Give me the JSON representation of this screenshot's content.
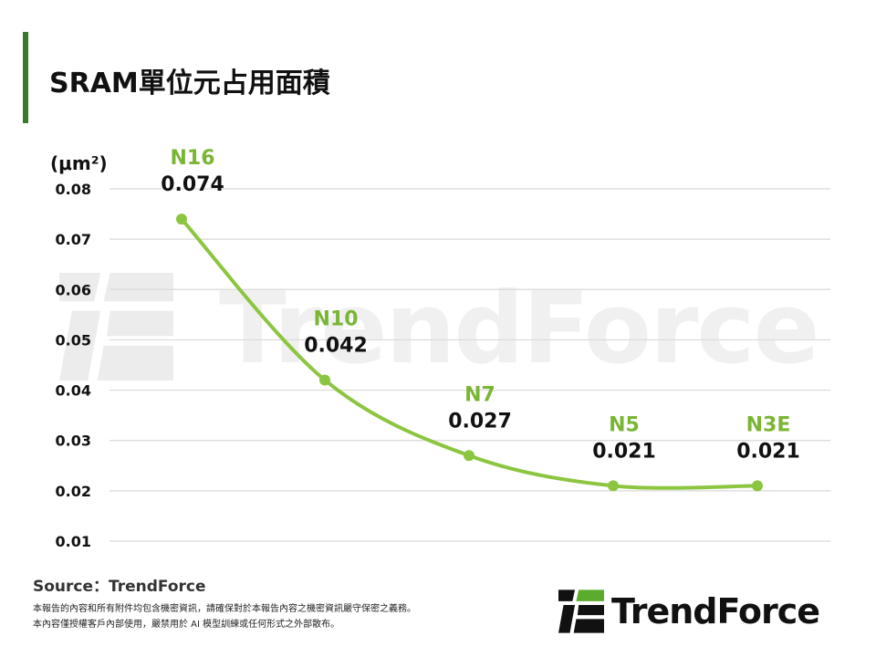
{
  "header": {
    "title": "SRAM單位元占用面積"
  },
  "chart_data": {
    "type": "line",
    "ylabel": "(μm²)",
    "ylim": [
      0.01,
      0.08
    ],
    "yticks": [
      "0.08",
      "0.07",
      "0.06",
      "0.05",
      "0.04",
      "0.03",
      "0.02",
      "0.01"
    ],
    "grid": true,
    "categories": [
      "N16",
      "N10",
      "N7",
      "N5",
      "N3E"
    ],
    "series": [
      {
        "values": [
          0.074,
          0.042,
          0.027,
          0.021,
          0.021
        ]
      }
    ],
    "value_labels": [
      "0.074",
      "0.042",
      "0.027",
      "0.021",
      "0.021"
    ],
    "colors": {
      "line": "#8cc540",
      "category_label": "#7ab534",
      "value_label": "#111111",
      "grid": "#d9d9d9"
    }
  },
  "footer": {
    "source": "Source：TrendForce",
    "disclaimer_1": "本報告的內容和所有附件均包含機密資訊，請確保對於本報告內容之機密資訊嚴守保密之義務。",
    "disclaimer_2": "本內容僅授權客戶內部使用，嚴禁用於 AI 模型訓練或任何形式之外部散布。",
    "logo_text": "TrendForce",
    "watermark_text": "TrendForce"
  }
}
